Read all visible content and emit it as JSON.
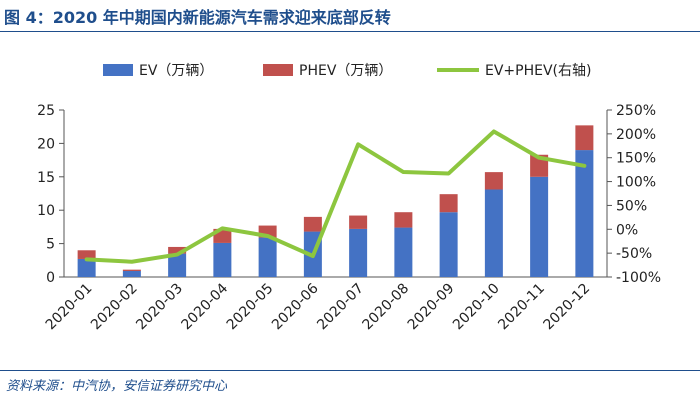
{
  "header": {
    "title": "图 4：2020 年中期国内新能源汽车需求迎来底部反转"
  },
  "footer": {
    "source": "资料来源：中汽协，安信证券研究中心"
  },
  "colors": {
    "ev": "#4472c4",
    "phev": "#c0504d",
    "line": "#8dc63f",
    "accent": "#1f4e8c"
  },
  "chart_data": {
    "type": "bar",
    "stacked": true,
    "categories": [
      "2020-01",
      "2020-02",
      "2020-03",
      "2020-04",
      "2020-05",
      "2020-06",
      "2020-07",
      "2020-08",
      "2020-09",
      "2020-10",
      "2020-11",
      "2020-12"
    ],
    "series": [
      {
        "name": "EV（万辆）",
        "type": "bar",
        "axis": "left",
        "values": [
          2.7,
          0.9,
          3.5,
          5.1,
          5.9,
          6.8,
          7.2,
          7.4,
          9.7,
          13.1,
          15.0,
          19.0
        ]
      },
      {
        "name": "PHEV（万辆）",
        "type": "bar",
        "axis": "left",
        "values": [
          1.3,
          0.2,
          1.0,
          2.1,
          1.8,
          2.2,
          2.0,
          2.3,
          2.7,
          2.6,
          3.3,
          3.7
        ]
      },
      {
        "name": "EV+PHEV(右轴)",
        "type": "line",
        "axis": "right",
        "values": [
          -63,
          -68,
          -53,
          2,
          -14,
          -56,
          178,
          120,
          117,
          205,
          150,
          133
        ]
      }
    ],
    "y_left": {
      "min": 0,
      "max": 25,
      "ticks": [
        "0",
        "5",
        "10",
        "15",
        "20",
        "25"
      ]
    },
    "y_right": {
      "min": -100,
      "max": 250,
      "ticks": [
        "-100%",
        "-50%",
        "0%",
        "50%",
        "100%",
        "150%",
        "200%",
        "250%"
      ]
    },
    "legend": {
      "position": "top",
      "labels": [
        "EV（万辆）",
        "PHEV（万辆）",
        "EV+PHEV(右轴)"
      ]
    }
  }
}
